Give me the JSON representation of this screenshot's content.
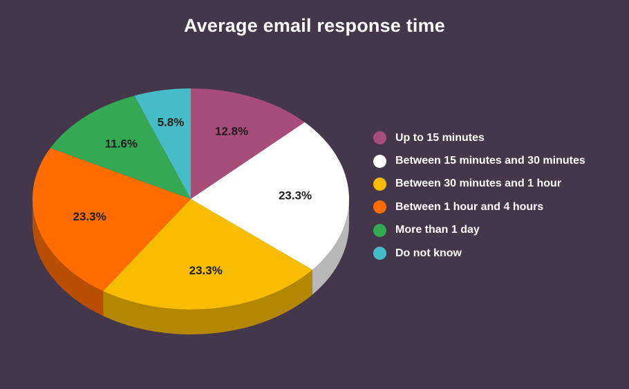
{
  "chart_data": {
    "type": "pie",
    "title": "Average email response time",
    "legend_position": "right",
    "categories": [
      "Up to 15 minutes",
      "Between 15 minutes and 30 minutes",
      "Between 30 minutes and 1 hour",
      "Between 1 hour and 4 hours",
      "More than 1 day",
      "Do not know"
    ],
    "values": [
      12.8,
      23.3,
      23.3,
      23.3,
      11.6,
      5.8
    ],
    "labels": [
      "12.8%",
      "23.3%",
      "23.3%",
      "23.3%",
      "11.6%",
      "5.8%"
    ],
    "colors": [
      "#a64d79",
      "#ffffff",
      "#f9bd00",
      "#ff6d01",
      "#34a853",
      "#46bdc6"
    ]
  }
}
